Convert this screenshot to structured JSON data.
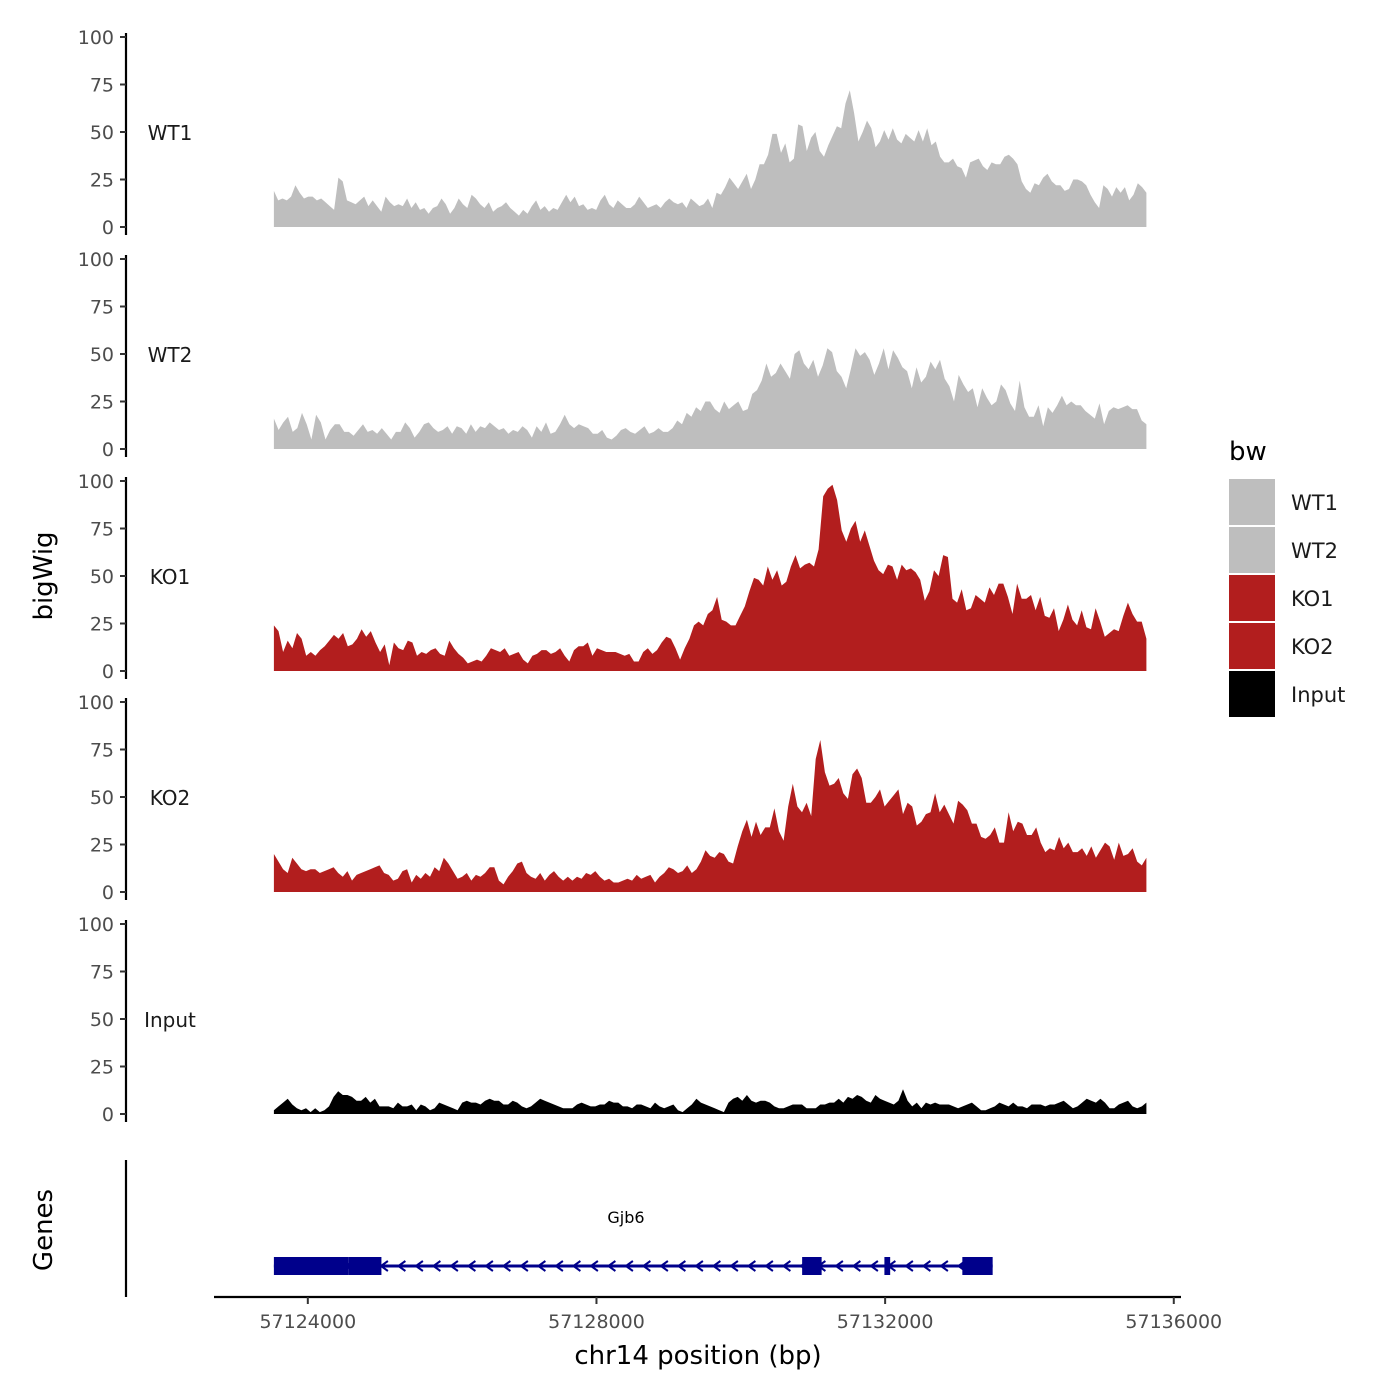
{
  "chart_data": {
    "type": "area",
    "chromosome": "chr14",
    "xlabel": "chr14 position (bp)",
    "ylabel": "bigWig",
    "genes_label": "Genes",
    "xlim": [
      57122700,
      57136100
    ],
    "ylim": [
      0,
      100
    ],
    "x_ticks": [
      57124000,
      57128000,
      57132000,
      57136000
    ],
    "x_tick_labels": [
      "57124000",
      "57128000",
      "57132000",
      "57136000"
    ],
    "y_ticks": [
      0,
      25,
      50,
      75,
      100
    ],
    "y_tick_labels": [
      "0",
      "25",
      "50",
      "75",
      "100"
    ],
    "region": [
      57123530,
      57135620
    ],
    "legend": {
      "title": "bw",
      "entries": [
        {
          "label": "WT1",
          "color": "#bebebe"
        },
        {
          "label": "WT2",
          "color": "#bebebe"
        },
        {
          "label": "KO1",
          "color": "#b21e1e"
        },
        {
          "label": "KO2",
          "color": "#b21e1e"
        },
        {
          "label": "Input",
          "color": "#000000"
        }
      ]
    },
    "series": [
      {
        "name": "WT1",
        "color": "#bebebe",
        "values": [
          19,
          14,
          15,
          14,
          16,
          22,
          18,
          15,
          16,
          16,
          14,
          15,
          13,
          11,
          9,
          26,
          24,
          14,
          13,
          12,
          14,
          16,
          11,
          14,
          11,
          8,
          16,
          13,
          11,
          12,
          11,
          15,
          10,
          13,
          9,
          10,
          7,
          10,
          11,
          15,
          12,
          7,
          10,
          15,
          12,
          10,
          17,
          15,
          12,
          10,
          13,
          8,
          10,
          11,
          13,
          10,
          8,
          6,
          9,
          7,
          11,
          14,
          9,
          11,
          8,
          10,
          9,
          13,
          17,
          13,
          16,
          11,
          12,
          9,
          10,
          9,
          14,
          17,
          12,
          10,
          14,
          12,
          10,
          10,
          12,
          16,
          13,
          10,
          11,
          12,
          10,
          13,
          15,
          13,
          12,
          13,
          10,
          15,
          13,
          11,
          12,
          15,
          10,
          18,
          17,
          21,
          26,
          23,
          20,
          24,
          28,
          20,
          25,
          33,
          33,
          38,
          49,
          49,
          39,
          44,
          34,
          36,
          54,
          53,
          40,
          47,
          50,
          40,
          37,
          43,
          48,
          53,
          52,
          65,
          72,
          60,
          45,
          50,
          56,
          52,
          42,
          45,
          51,
          46,
          52,
          46,
          44,
          49,
          47,
          45,
          51,
          45,
          52,
          43,
          45,
          37,
          34,
          34,
          36,
          32,
          31,
          26,
          34,
          35,
          36,
          32,
          30,
          34,
          33,
          33,
          37,
          38,
          36,
          33,
          24,
          20,
          18,
          23,
          22,
          26,
          28,
          24,
          22,
          22,
          19,
          20,
          25,
          25,
          24,
          22,
          17,
          13,
          10,
          22,
          20,
          16,
          21,
          18,
          21,
          14,
          17,
          23,
          21,
          18
        ]
      },
      {
        "name": "WT2",
        "color": "#bebebe",
        "values": [
          16,
          10,
          14,
          17,
          9,
          11,
          19,
          13,
          5,
          18,
          14,
          5,
          10,
          13,
          13,
          9,
          9,
          7,
          10,
          13,
          9,
          10,
          8,
          11,
          8,
          5,
          9,
          9,
          14,
          11,
          6,
          9,
          13,
          14,
          11,
          9,
          10,
          12,
          8,
          12,
          11,
          8,
          13,
          9,
          12,
          11,
          14,
          12,
          10,
          11,
          8,
          10,
          9,
          12,
          10,
          6,
          12,
          9,
          14,
          8,
          9,
          13,
          18,
          13,
          11,
          13,
          12,
          11,
          8,
          8,
          10,
          6,
          5,
          7,
          10,
          11,
          9,
          8,
          10,
          12,
          8,
          9,
          11,
          9,
          9,
          11,
          15,
          13,
          19,
          17,
          22,
          20,
          25,
          25,
          21,
          19,
          25,
          21,
          23,
          25,
          20,
          21,
          29,
          31,
          36,
          45,
          38,
          40,
          45,
          41,
          37,
          50,
          52,
          45,
          42,
          47,
          38,
          44,
          53,
          51,
          41,
          38,
          32,
          42,
          53,
          49,
          51,
          47,
          39,
          45,
          53,
          42,
          52,
          48,
          43,
          41,
          32,
          43,
          35,
          38,
          46,
          42,
          47,
          37,
          33,
          25,
          39,
          34,
          30,
          32,
          22,
          32,
          27,
          23,
          25,
          34,
          31,
          24,
          20,
          36,
          22,
          17,
          17,
          23,
          12,
          22,
          19,
          23,
          28,
          23,
          25,
          23,
          23,
          20,
          18,
          16,
          24,
          13,
          20,
          22,
          21,
          22,
          23,
          21,
          21,
          15,
          13
        ]
      },
      {
        "name": "KO1",
        "color": "#b21e1e",
        "values": [
          24,
          21,
          10,
          16,
          12,
          20,
          17,
          8,
          10,
          8,
          11,
          13,
          16,
          19,
          17,
          20,
          13,
          14,
          17,
          22,
          18,
          21,
          15,
          10,
          14,
          3,
          15,
          12,
          11,
          16,
          15,
          8,
          10,
          9,
          11,
          12,
          9,
          8,
          16,
          12,
          9,
          7,
          4,
          5,
          6,
          5,
          8,
          12,
          11,
          10,
          12,
          8,
          9,
          10,
          6,
          4,
          8,
          9,
          11,
          11,
          9,
          10,
          12,
          8,
          5,
          11,
          13,
          13,
          15,
          8,
          12,
          11,
          10,
          10,
          10,
          9,
          8,
          9,
          5,
          5,
          10,
          12,
          9,
          11,
          15,
          18,
          17,
          12,
          6,
          12,
          17,
          24,
          26,
          24,
          30,
          32,
          39,
          27,
          26,
          24,
          24,
          29,
          34,
          42,
          49,
          48,
          45,
          55,
          48,
          53,
          45,
          47,
          55,
          61,
          54,
          56,
          57,
          55,
          64,
          92,
          96,
          98,
          90,
          74,
          68,
          75,
          79,
          68,
          74,
          66,
          58,
          53,
          51,
          56,
          55,
          48,
          56,
          53,
          54,
          52,
          48,
          37,
          42,
          53,
          50,
          61,
          60,
          38,
          36,
          43,
          32,
          33,
          40,
          38,
          36,
          44,
          40,
          46,
          46,
          39,
          30,
          46,
          38,
          38,
          40,
          32,
          39,
          29,
          28,
          33,
          21,
          27,
          35,
          27,
          24,
          32,
          23,
          22,
          33,
          26,
          18,
          20,
          22,
          21,
          29,
          36,
          30,
          26,
          26,
          17
        ]
      },
      {
        "name": "KO2",
        "color": "#b21e1e",
        "values": [
          20,
          16,
          12,
          10,
          18,
          15,
          12,
          11,
          12,
          12,
          10,
          11,
          12,
          13,
          10,
          8,
          11,
          6,
          9,
          10,
          11,
          12,
          13,
          14,
          10,
          9,
          6,
          7,
          11,
          12,
          5,
          9,
          7,
          10,
          8,
          13,
          11,
          18,
          15,
          11,
          7,
          8,
          10,
          6,
          9,
          8,
          10,
          13,
          13,
          6,
          4,
          8,
          11,
          15,
          16,
          10,
          8,
          7,
          10,
          6,
          9,
          11,
          8,
          6,
          8,
          6,
          8,
          7,
          10,
          9,
          11,
          8,
          6,
          7,
          5,
          5,
          6,
          7,
          6,
          9,
          7,
          8,
          9,
          5,
          8,
          10,
          13,
          12,
          10,
          11,
          14,
          10,
          12,
          16,
          22,
          19,
          18,
          21,
          20,
          16,
          15,
          24,
          32,
          38,
          29,
          37,
          30,
          34,
          34,
          44,
          32,
          27,
          45,
          57,
          45,
          42,
          47,
          40,
          70,
          80,
          63,
          56,
          57,
          60,
          52,
          49,
          62,
          65,
          60,
          47,
          47,
          50,
          54,
          45,
          48,
          51,
          54,
          41,
          47,
          45,
          35,
          37,
          41,
          42,
          52,
          42,
          46,
          41,
          36,
          48,
          46,
          43,
          36,
          36,
          29,
          28,
          30,
          34,
          26,
          26,
          42,
          32,
          37,
          36,
          30,
          30,
          34,
          26,
          21,
          23,
          22,
          29,
          23,
          26,
          21,
          21,
          23,
          19,
          24,
          18,
          22,
          26,
          24,
          17,
          26,
          19,
          20,
          23,
          16,
          14,
          18
        ]
      },
      {
        "name": "Input",
        "color": "#000000",
        "values": [
          2,
          4,
          6,
          8,
          5,
          3,
          2,
          3,
          1,
          3,
          1,
          2,
          4,
          9,
          12,
          10,
          10,
          9,
          7,
          7,
          9,
          6,
          8,
          4,
          4,
          4,
          3,
          6,
          4,
          4,
          5,
          2,
          5,
          4,
          2,
          3,
          6,
          5,
          4,
          3,
          2,
          6,
          7,
          6,
          6,
          5,
          7,
          8,
          7,
          7,
          5,
          5,
          7,
          6,
          4,
          3,
          4,
          6,
          8,
          7,
          6,
          5,
          4,
          3,
          3,
          3,
          5,
          6,
          5,
          4,
          4,
          5,
          5,
          7,
          6,
          6,
          4,
          4,
          3,
          5,
          5,
          4,
          3,
          6,
          4,
          3,
          4,
          5,
          2,
          1,
          3,
          5,
          8,
          6,
          5,
          4,
          3,
          2,
          1,
          6,
          8,
          9,
          7,
          10,
          7,
          6,
          7,
          7,
          6,
          4,
          3,
          3,
          4,
          5,
          5,
          5,
          3,
          3,
          3,
          5,
          5,
          6,
          6,
          8,
          6,
          9,
          8,
          10,
          9,
          7,
          6,
          10,
          8,
          7,
          6,
          5,
          7,
          13,
          7,
          4,
          6,
          3,
          6,
          5,
          6,
          5,
          5,
          5,
          4,
          3,
          4,
          5,
          6,
          4,
          2,
          2,
          3,
          4,
          6,
          5,
          4,
          6,
          4,
          4,
          3,
          5,
          5,
          5,
          4,
          5,
          5,
          6,
          7,
          5,
          3,
          4,
          6,
          8,
          7,
          6,
          8,
          6,
          3,
          3,
          5,
          6,
          7,
          4,
          3,
          4,
          6
        ]
      }
    ],
    "genes": [
      {
        "name": "Gjb6",
        "start": 57123530,
        "end": 57133490,
        "strand": "-",
        "exons": [
          [
            57123530,
            57124560
          ],
          [
            57124560,
            57125020
          ],
          [
            57130850,
            57131120
          ],
          [
            57131990,
            57132070
          ],
          [
            57133070,
            57133490
          ]
        ]
      }
    ]
  }
}
